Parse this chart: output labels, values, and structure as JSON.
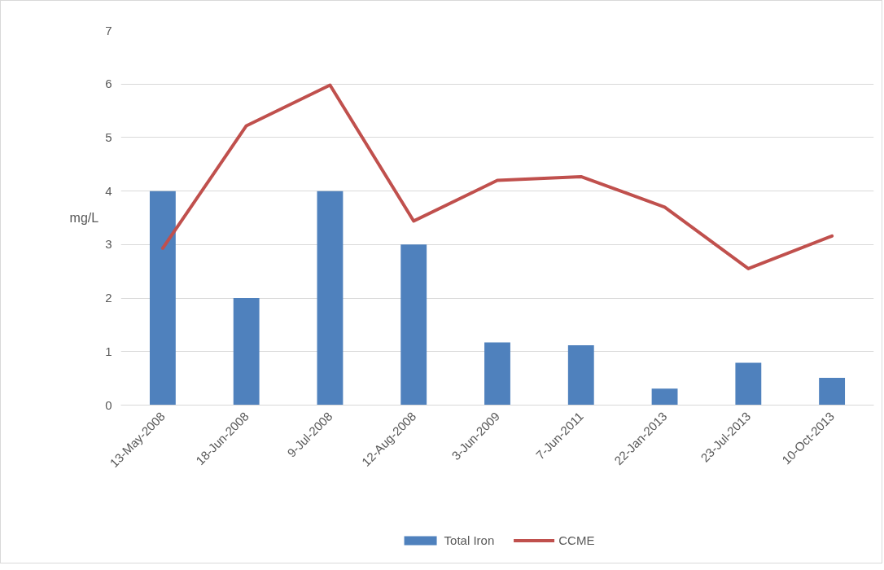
{
  "chart_data": {
    "type": "bar",
    "ylabel": "mg/L",
    "categories": [
      "13-May-2008",
      "18-Jun-2008",
      "9-Jul-2008",
      "12-Aug-2008",
      "3-Jun-2009",
      "7-Jun-2011",
      "22-Jan-2013",
      "23-Jul-2013",
      "10-Oct-2013"
    ],
    "series": [
      {
        "name": "Total Iron",
        "color": "#4f81bd",
        "values": [
          4,
          2,
          4,
          3,
          1.17,
          1.12,
          0.31,
          0.79,
          0.51
        ]
      },
      {
        "name": "CCME",
        "type": "line",
        "color": "#c0504d",
        "values": [
          2.93,
          5.22,
          5.98,
          3.44,
          4.2,
          4.27,
          3.7,
          2.55,
          3.16
        ]
      }
    ],
    "ylim": [
      0,
      7
    ],
    "yticks": [
      0,
      1,
      2,
      3,
      4,
      5,
      6,
      7
    ],
    "grid": "y",
    "legend": "bottom",
    "line_style": "solid"
  }
}
